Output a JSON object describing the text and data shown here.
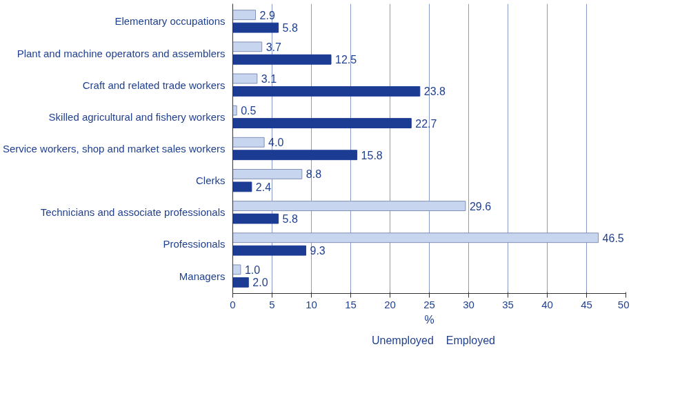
{
  "chart_data": {
    "type": "bar",
    "orientation": "horizontal",
    "xlabel": "%",
    "categories": [
      "Elementary occupations",
      "Plant and machine operators and assemblers",
      "Craft and related trade workers",
      "Skilled agricultural and fishery workers",
      "Service workers, shop and market sales workers",
      "Clerks",
      "Technicians and associate professionals",
      "Professionals",
      "Managers"
    ],
    "series": [
      {
        "name": "Unemployed",
        "color": "#c8d5ee",
        "values": [
          2.9,
          3.7,
          3.1,
          0.5,
          4.0,
          8.8,
          29.6,
          46.5,
          1.0
        ],
        "value_labels": [
          "2.9",
          "3.7",
          "3.1",
          "0.5",
          "4.0",
          "8.8",
          "29.6",
          "46.5",
          "1.0"
        ]
      },
      {
        "name": "Employed",
        "color": "#1c3c94",
        "values": [
          5.8,
          12.5,
          23.8,
          22.7,
          15.8,
          2.4,
          5.8,
          9.3,
          2.0
        ],
        "value_labels": [
          "5.8",
          "12.5",
          "23.8",
          "22.7",
          "15.8",
          "2.4",
          "5.8",
          "9.3",
          "2.0"
        ]
      }
    ],
    "xlim": [
      0,
      50
    ],
    "xticks": [
      0,
      5,
      10,
      15,
      20,
      25,
      30,
      35,
      40,
      45,
      50
    ],
    "grid": "x",
    "legend": "bottom"
  }
}
